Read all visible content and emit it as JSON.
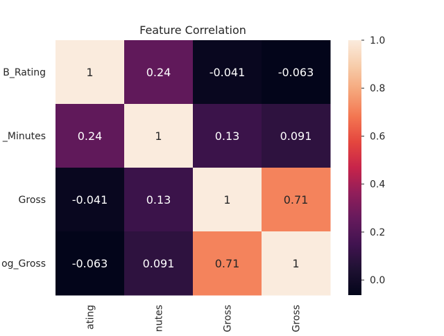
{
  "chart_data": {
    "type": "heatmap",
    "title": "Feature Correlation",
    "row_labels": [
      "B_Rating",
      "_Minutes",
      "Gross",
      "og_Gross"
    ],
    "col_labels": [
      "ating",
      "inutes",
      "Gross",
      "Gross"
    ],
    "values": [
      [
        1,
        0.24,
        -0.041,
        -0.063
      ],
      [
        0.24,
        1,
        0.13,
        0.091
      ],
      [
        -0.041,
        0.13,
        1,
        0.71
      ],
      [
        -0.063,
        0.091,
        0.71,
        1
      ]
    ],
    "cell_labels": [
      [
        "1",
        "0.24",
        "-0.041",
        "-0.063"
      ],
      [
        "0.24",
        "1",
        "0.13",
        "0.091"
      ],
      [
        "-0.041",
        "0.13",
        "1",
        "0.71"
      ],
      [
        "-0.063",
        "0.091",
        "0.71",
        "1"
      ]
    ],
    "colormap": "rocket",
    "vmin": -0.063,
    "vmax": 1,
    "colorbar_ticks": [
      "0.0",
      "0.2",
      "0.4",
      "0.6",
      "0.8",
      "1.0"
    ],
    "colorbar_tick_values": [
      0,
      0.2,
      0.4,
      0.6,
      0.8,
      1.0
    ],
    "colorbar_placement": "right",
    "grid": false
  }
}
